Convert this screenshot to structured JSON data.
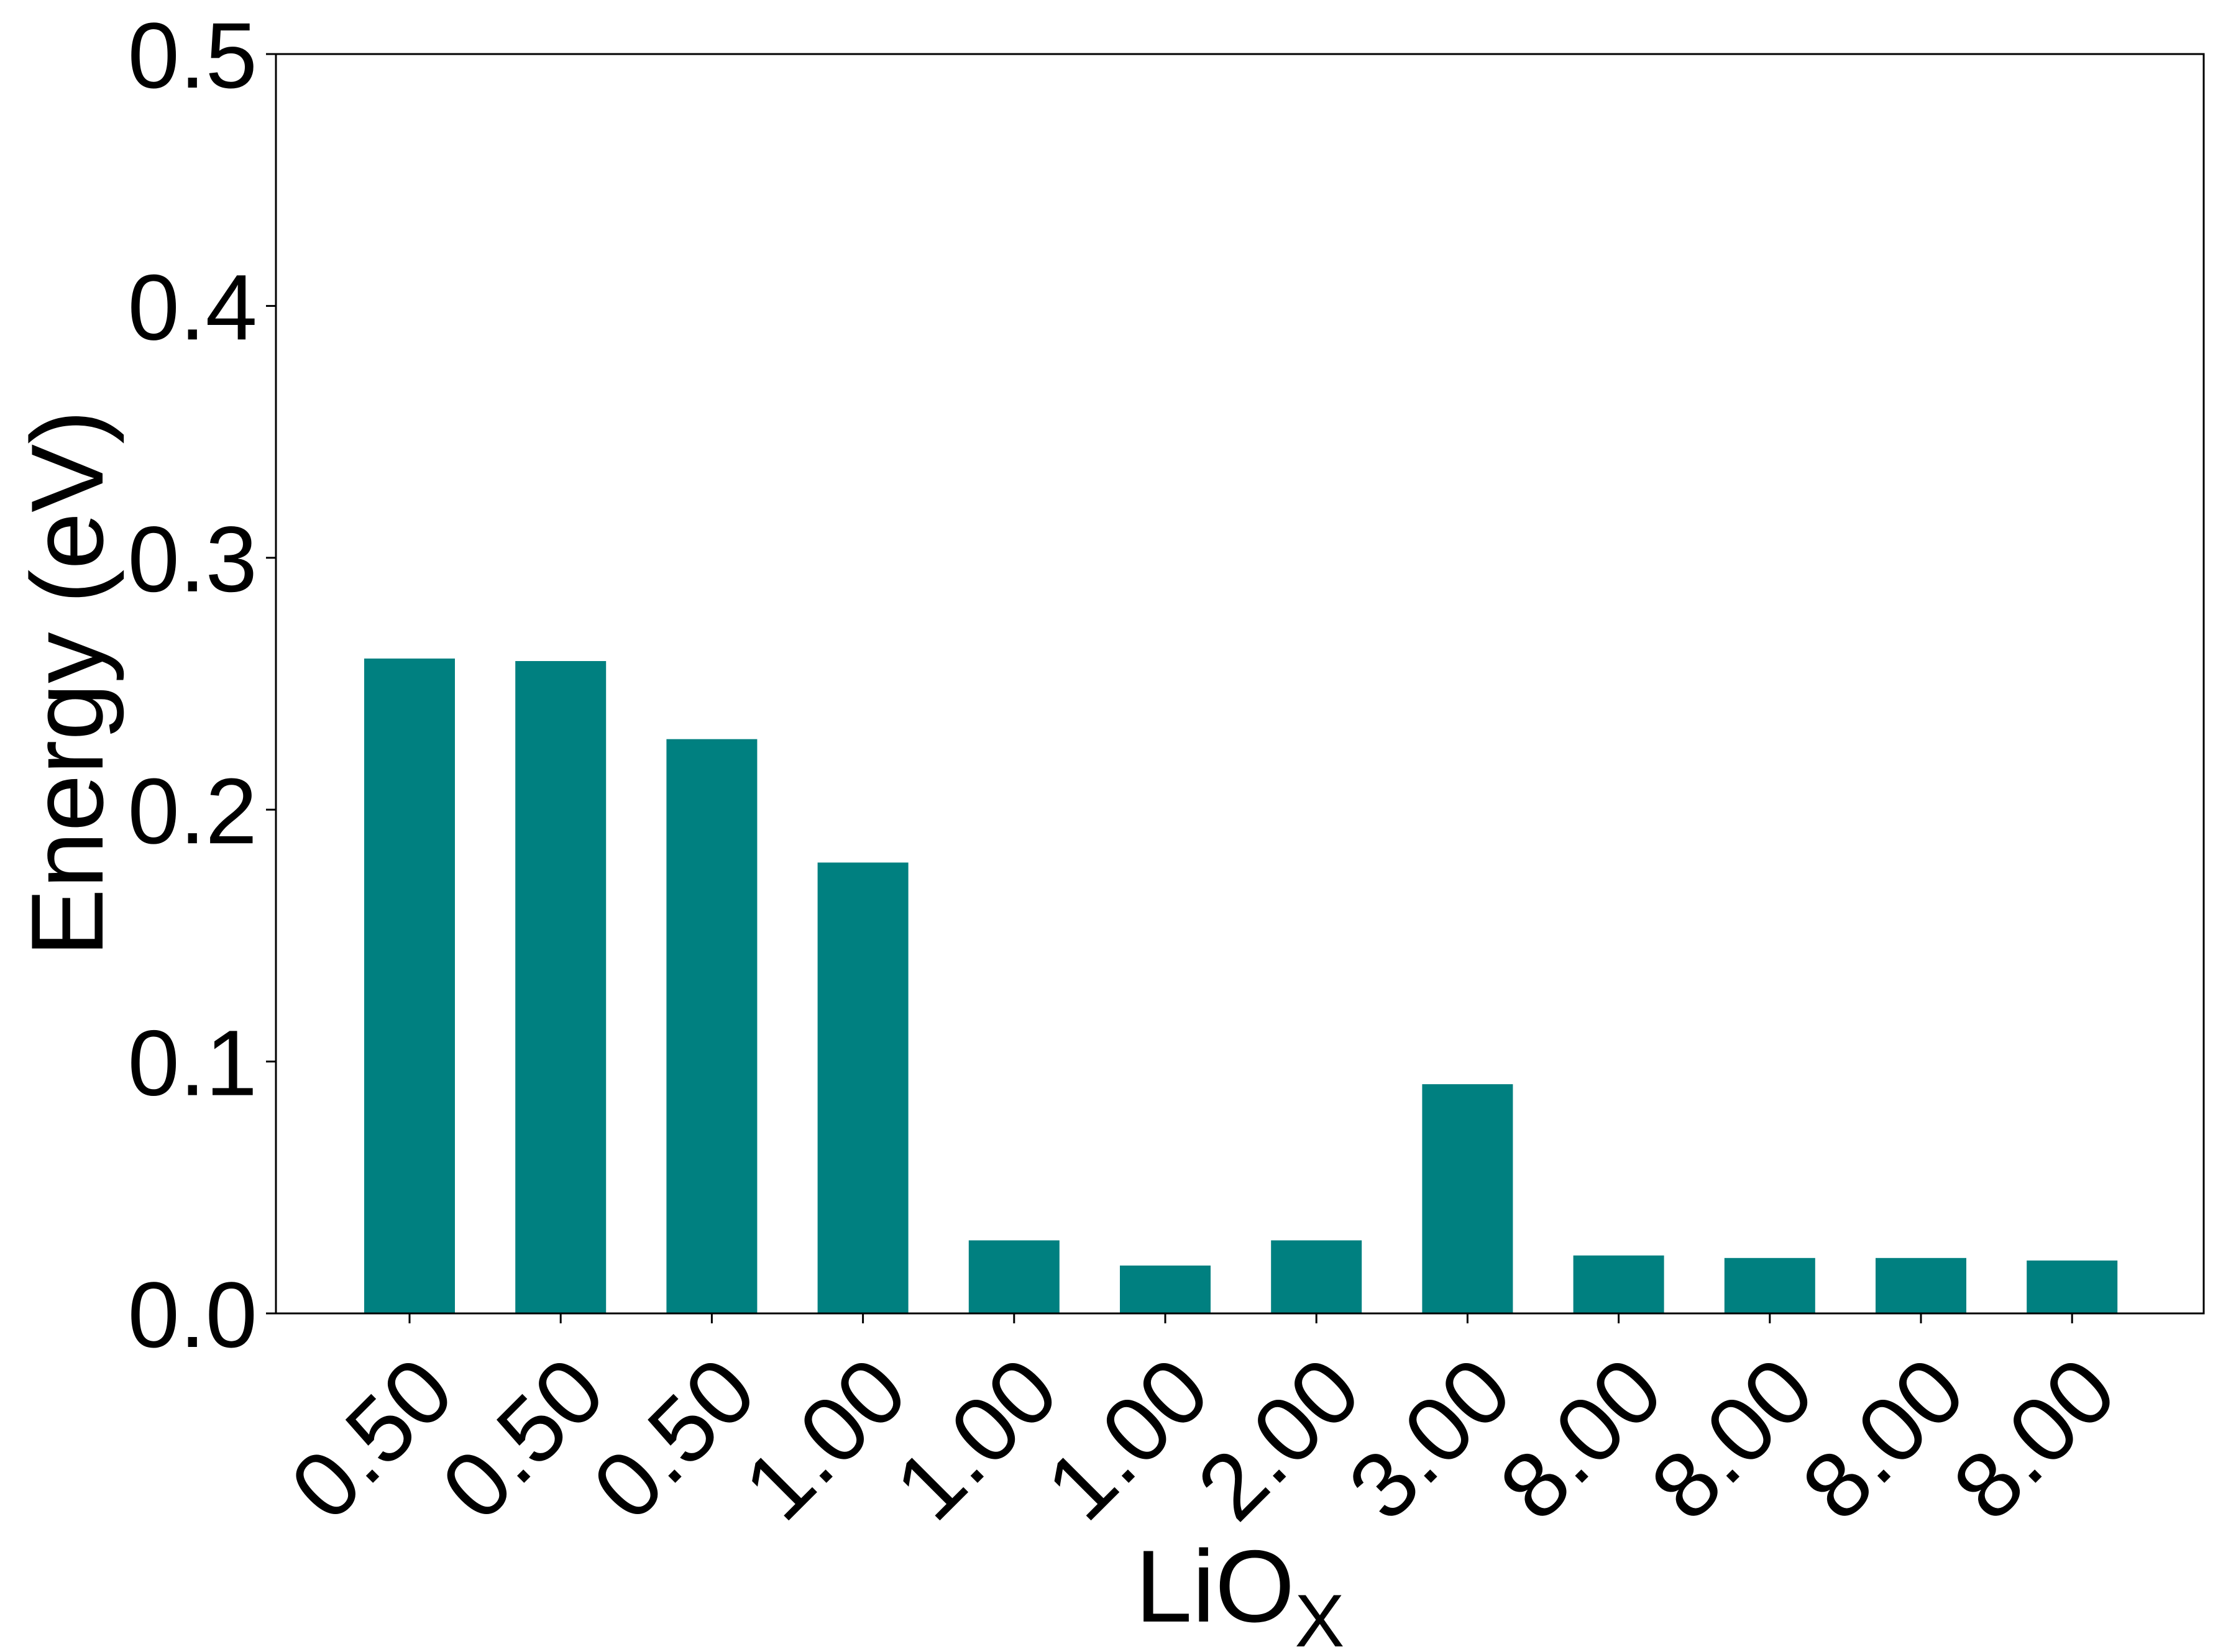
{
  "chart_data": {
    "type": "bar",
    "categories": [
      "0.50",
      "0.50",
      "0.50",
      "1.00",
      "1.00",
      "1.00",
      "2.00",
      "3.00",
      "8.00",
      "8.00",
      "8.00",
      "8.00"
    ],
    "values": [
      0.26,
      0.259,
      0.228,
      0.179,
      0.029,
      0.019,
      0.029,
      0.091,
      0.023,
      0.022,
      0.022,
      0.021
    ],
    "xlabel": {
      "main": "LiO",
      "subscript": "X"
    },
    "ylabel": "Energy (eV)",
    "ylim": [
      0.0,
      0.5
    ],
    "yticks": [
      "0.0",
      "0.1",
      "0.2",
      "0.3",
      "0.4",
      "0.5"
    ],
    "grid": false,
    "bar_color": "#008080",
    "xtick_rotation": "45"
  }
}
